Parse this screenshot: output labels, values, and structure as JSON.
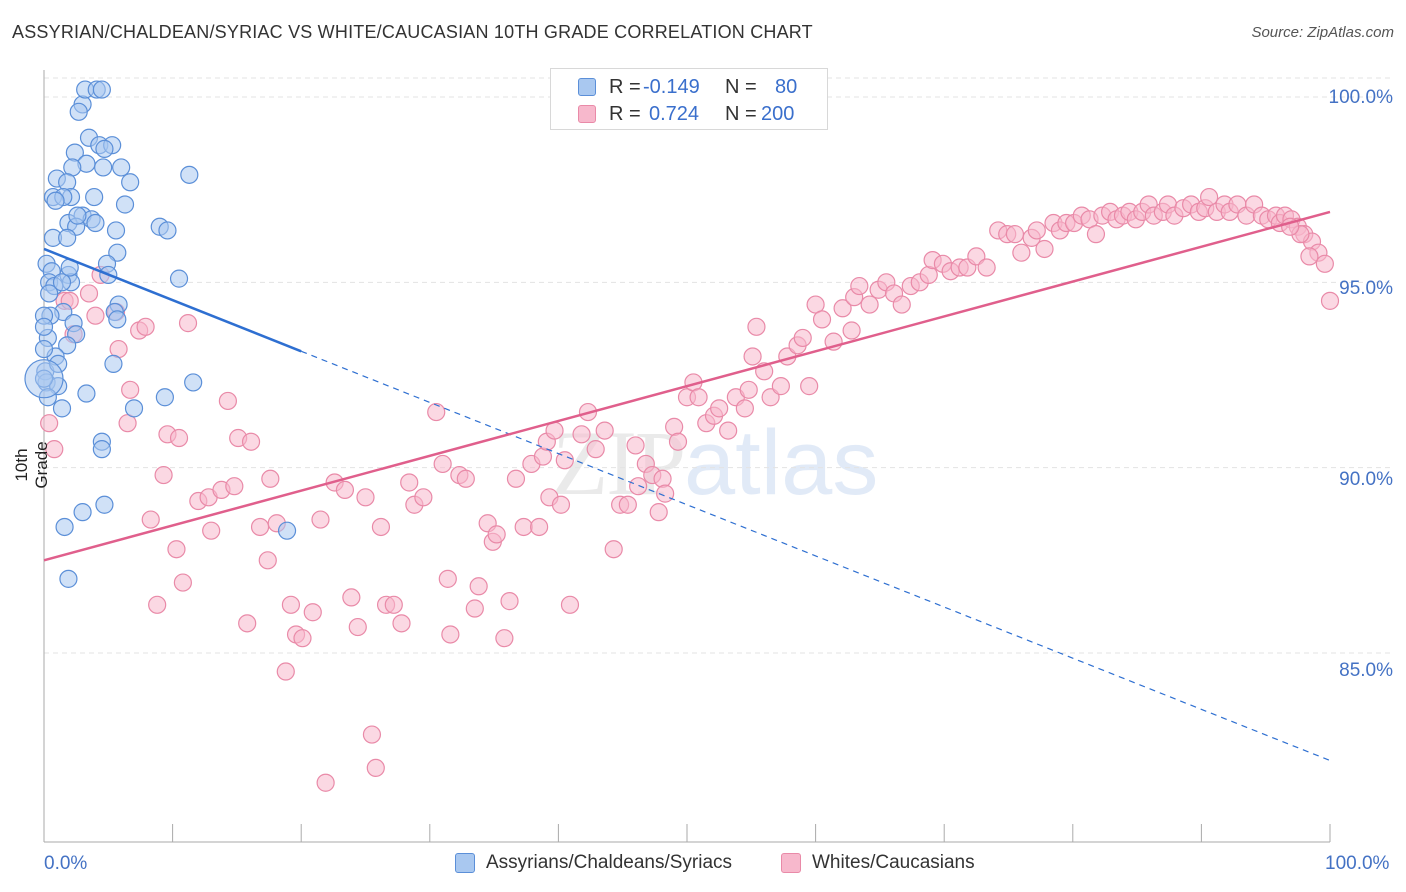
{
  "title": "ASSYRIAN/CHALDEAN/SYRIAC VS WHITE/CAUCASIAN 10TH GRADE CORRELATION CHART",
  "source": "Source: ZipAtlas.com",
  "watermark": {
    "zip": "ZIP",
    "atlas": "atlas"
  },
  "legend_top": {
    "rows": [
      {
        "r_label": "R =",
        "r_value": "-0.149",
        "n_label": "N =",
        "n_value": "80"
      },
      {
        "r_label": "R =",
        "r_value": "0.724",
        "n_label": "N =",
        "n_value": "200"
      }
    ]
  },
  "y_axis_title": "10th Grade",
  "x_tick_labels": [
    "0.0%",
    "100.0%"
  ],
  "y_tick_labels": [
    "100.0%",
    "95.0%",
    "90.0%",
    "85.0%"
  ],
  "legend_bottom": [
    "Assyrians/Chaldeans/Syriacs",
    "Whites/Caucasians"
  ],
  "colors": {
    "blue_fill": "#a9c8f0",
    "blue_stroke": "#5b8fd8",
    "blue_line": "#2e6fd1",
    "pink_fill": "#f7b8cc",
    "pink_stroke": "#e98aa8",
    "pink_line": "#e05f8c",
    "grid": "#e3e3e3",
    "tick_text": "#4472c4"
  },
  "chart_data": {
    "type": "scatter",
    "x_range": [
      0,
      100
    ],
    "y_range": [
      80.5,
      101.2
    ],
    "y_ticks": [
      100,
      95,
      90,
      85
    ],
    "grid": true,
    "legend_placement": "bottom",
    "series": [
      {
        "name": "Assyrians/Chaldeans/Syriacs",
        "color": "#5b8fd8",
        "trend": {
          "x0": 0,
          "y0": 95.9,
          "x1": 100,
          "y1": 82.1,
          "solid_until_x": 20
        },
        "points": [
          [
            3.0,
            99.8
          ],
          [
            3.2,
            100.2
          ],
          [
            4.1,
            100.2
          ],
          [
            4.5,
            100.2
          ],
          [
            2.7,
            99.6
          ],
          [
            3.5,
            98.9
          ],
          [
            4.3,
            98.7
          ],
          [
            5.3,
            98.7
          ],
          [
            4.7,
            98.6
          ],
          [
            2.4,
            98.5
          ],
          [
            3.3,
            98.2
          ],
          [
            2.2,
            98.1
          ],
          [
            6.0,
            98.1
          ],
          [
            1.0,
            97.8
          ],
          [
            1.8,
            97.7
          ],
          [
            6.7,
            97.7
          ],
          [
            11.3,
            97.9
          ],
          [
            2.1,
            97.3
          ],
          [
            0.7,
            97.3
          ],
          [
            1.5,
            97.3
          ],
          [
            6.3,
            97.1
          ],
          [
            0.9,
            97.2
          ],
          [
            3.0,
            96.8
          ],
          [
            3.7,
            96.7
          ],
          [
            1.9,
            96.6
          ],
          [
            2.5,
            96.5
          ],
          [
            4.0,
            96.6
          ],
          [
            9.0,
            96.5
          ],
          [
            9.6,
            96.4
          ],
          [
            5.6,
            96.4
          ],
          [
            0.7,
            96.2
          ],
          [
            1.8,
            96.2
          ],
          [
            5.7,
            95.8
          ],
          [
            0.2,
            95.5
          ],
          [
            4.9,
            95.5
          ],
          [
            5.0,
            95.2
          ],
          [
            1.9,
            95.2
          ],
          [
            0.6,
            95.3
          ],
          [
            10.5,
            95.1
          ],
          [
            2.1,
            95.0
          ],
          [
            0.4,
            95.0
          ],
          [
            0.8,
            94.9
          ],
          [
            1.4,
            95.0
          ],
          [
            5.8,
            94.4
          ],
          [
            5.5,
            94.2
          ],
          [
            1.5,
            94.2
          ],
          [
            0.5,
            94.1
          ],
          [
            5.7,
            94.0
          ],
          [
            2.3,
            93.9
          ],
          [
            0.3,
            93.5
          ],
          [
            2.5,
            93.6
          ],
          [
            1.8,
            93.3
          ],
          [
            0.9,
            93.0
          ],
          [
            5.4,
            92.8
          ],
          [
            0.1,
            92.6
          ],
          [
            0.2,
            92.3
          ],
          [
            1.1,
            92.2
          ],
          [
            11.6,
            92.3
          ],
          [
            3.3,
            92.0
          ],
          [
            9.4,
            91.9
          ],
          [
            7.0,
            91.6
          ],
          [
            1.4,
            91.6
          ],
          [
            4.5,
            90.7
          ],
          [
            4.5,
            90.5
          ],
          [
            4.7,
            89.0
          ],
          [
            3.0,
            88.8
          ],
          [
            1.6,
            88.4
          ],
          [
            18.9,
            88.3
          ],
          [
            1.9,
            87.0
          ],
          [
            0.0,
            94.1
          ],
          [
            0.0,
            93.8
          ],
          [
            1.1,
            92.8
          ],
          [
            0.0,
            93.2
          ],
          [
            0.0,
            92.4
          ],
          [
            0.3,
            91.9
          ],
          [
            0.4,
            94.7
          ],
          [
            2.0,
            95.4
          ],
          [
            2.6,
            96.8
          ],
          [
            3.9,
            97.3
          ],
          [
            4.6,
            98.1
          ]
        ]
      },
      {
        "name": "Whites/Caucasians",
        "color": "#e98aa8",
        "trend": {
          "x0": 0,
          "y0": 87.5,
          "x1": 100,
          "y1": 96.9
        },
        "points": [
          [
            0.4,
            91.2
          ],
          [
            0.8,
            90.5
          ],
          [
            1.6,
            94.5
          ],
          [
            2.0,
            94.5
          ],
          [
            2.3,
            93.6
          ],
          [
            3.5,
            94.7
          ],
          [
            4.0,
            94.1
          ],
          [
            4.4,
            95.2
          ],
          [
            5.6,
            94.2
          ],
          [
            5.8,
            93.2
          ],
          [
            6.5,
            91.2
          ],
          [
            6.7,
            92.1
          ],
          [
            7.4,
            93.7
          ],
          [
            7.9,
            93.8
          ],
          [
            8.3,
            88.6
          ],
          [
            8.8,
            86.3
          ],
          [
            9.3,
            89.8
          ],
          [
            9.6,
            90.9
          ],
          [
            10.3,
            87.8
          ],
          [
            10.5,
            90.8
          ],
          [
            10.8,
            86.9
          ],
          [
            11.2,
            93.9
          ],
          [
            12.0,
            89.1
          ],
          [
            12.8,
            89.2
          ],
          [
            13.0,
            88.3
          ],
          [
            13.8,
            89.4
          ],
          [
            14.3,
            91.8
          ],
          [
            14.8,
            89.5
          ],
          [
            15.1,
            90.8
          ],
          [
            15.8,
            85.8
          ],
          [
            16.1,
            90.7
          ],
          [
            16.8,
            88.4
          ],
          [
            17.4,
            87.5
          ],
          [
            17.6,
            89.7
          ],
          [
            18.1,
            88.5
          ],
          [
            18.8,
            84.5
          ],
          [
            19.2,
            86.3
          ],
          [
            19.6,
            85.5
          ],
          [
            20.1,
            85.4
          ],
          [
            20.9,
            86.1
          ],
          [
            21.5,
            88.6
          ],
          [
            21.9,
            81.5
          ],
          [
            22.6,
            89.6
          ],
          [
            23.4,
            89.4
          ],
          [
            23.9,
            86.5
          ],
          [
            24.4,
            85.7
          ],
          [
            25.0,
            89.2
          ],
          [
            25.5,
            82.8
          ],
          [
            25.8,
            81.9
          ],
          [
            26.2,
            88.4
          ],
          [
            26.6,
            86.3
          ],
          [
            27.2,
            86.3
          ],
          [
            27.8,
            85.8
          ],
          [
            28.4,
            89.6
          ],
          [
            28.8,
            89.0
          ],
          [
            29.5,
            89.2
          ],
          [
            30.5,
            91.5
          ],
          [
            31.0,
            90.1
          ],
          [
            31.4,
            87.0
          ],
          [
            31.6,
            85.5
          ],
          [
            32.3,
            89.8
          ],
          [
            32.8,
            89.7
          ],
          [
            33.5,
            86.2
          ],
          [
            33.8,
            86.8
          ],
          [
            34.5,
            88.5
          ],
          [
            34.9,
            88.0
          ],
          [
            35.2,
            88.2
          ],
          [
            35.8,
            85.4
          ],
          [
            36.2,
            86.4
          ],
          [
            36.7,
            89.7
          ],
          [
            37.3,
            88.4
          ],
          [
            37.9,
            90.1
          ],
          [
            38.5,
            88.4
          ],
          [
            38.8,
            90.3
          ],
          [
            39.1,
            90.7
          ],
          [
            39.3,
            89.2
          ],
          [
            39.7,
            91.0
          ],
          [
            40.2,
            89.0
          ],
          [
            40.5,
            90.2
          ],
          [
            40.9,
            86.3
          ],
          [
            41.8,
            90.9
          ],
          [
            42.3,
            91.5
          ],
          [
            42.9,
            90.5
          ],
          [
            43.6,
            91.0
          ],
          [
            44.3,
            87.8
          ],
          [
            44.8,
            89.0
          ],
          [
            45.4,
            89.0
          ],
          [
            46.0,
            90.6
          ],
          [
            46.2,
            89.5
          ],
          [
            46.8,
            90.1
          ],
          [
            47.3,
            89.8
          ],
          [
            47.8,
            88.8
          ],
          [
            48.1,
            89.7
          ],
          [
            48.3,
            89.3
          ],
          [
            49.0,
            91.1
          ],
          [
            49.3,
            90.7
          ],
          [
            50.0,
            91.9
          ],
          [
            50.5,
            92.3
          ],
          [
            50.9,
            91.9
          ],
          [
            51.5,
            91.2
          ],
          [
            52.1,
            91.4
          ],
          [
            52.5,
            91.6
          ],
          [
            53.2,
            91.0
          ],
          [
            53.8,
            91.9
          ],
          [
            54.5,
            91.6
          ],
          [
            54.8,
            92.1
          ],
          [
            55.1,
            93.0
          ],
          [
            55.4,
            93.8
          ],
          [
            56.0,
            92.6
          ],
          [
            56.5,
            91.9
          ],
          [
            57.3,
            92.2
          ],
          [
            57.8,
            93.0
          ],
          [
            58.6,
            93.3
          ],
          [
            59.0,
            93.5
          ],
          [
            59.5,
            92.2
          ],
          [
            60.0,
            94.4
          ],
          [
            60.5,
            94.0
          ],
          [
            61.4,
            93.4
          ],
          [
            62.1,
            94.3
          ],
          [
            62.8,
            93.7
          ],
          [
            63.0,
            94.6
          ],
          [
            63.4,
            94.9
          ],
          [
            64.2,
            94.4
          ],
          [
            64.9,
            94.8
          ],
          [
            65.5,
            95.0
          ],
          [
            66.1,
            94.7
          ],
          [
            66.7,
            94.4
          ],
          [
            67.4,
            94.9
          ],
          [
            68.1,
            95.0
          ],
          [
            68.8,
            95.2
          ],
          [
            69.1,
            95.6
          ],
          [
            69.9,
            95.5
          ],
          [
            70.5,
            95.3
          ],
          [
            71.2,
            95.4
          ],
          [
            71.8,
            95.4
          ],
          [
            72.5,
            95.7
          ],
          [
            73.3,
            95.4
          ],
          [
            74.2,
            96.4
          ],
          [
            74.9,
            96.3
          ],
          [
            75.5,
            96.3
          ],
          [
            76.0,
            95.8
          ],
          [
            76.8,
            96.2
          ],
          [
            77.2,
            96.4
          ],
          [
            77.8,
            95.9
          ],
          [
            78.5,
            96.6
          ],
          [
            79.0,
            96.4
          ],
          [
            79.5,
            96.6
          ],
          [
            80.1,
            96.6
          ],
          [
            80.7,
            96.8
          ],
          [
            81.3,
            96.7
          ],
          [
            81.8,
            96.3
          ],
          [
            82.3,
            96.8
          ],
          [
            82.9,
            96.9
          ],
          [
            83.4,
            96.7
          ],
          [
            83.9,
            96.8
          ],
          [
            84.4,
            96.9
          ],
          [
            84.9,
            96.7
          ],
          [
            85.4,
            96.9
          ],
          [
            85.9,
            97.1
          ],
          [
            86.3,
            96.8
          ],
          [
            87.0,
            96.9
          ],
          [
            87.4,
            97.1
          ],
          [
            87.9,
            96.8
          ],
          [
            88.6,
            97.0
          ],
          [
            89.2,
            97.1
          ],
          [
            89.8,
            96.9
          ],
          [
            90.3,
            97.0
          ],
          [
            90.6,
            97.3
          ],
          [
            91.2,
            96.9
          ],
          [
            91.8,
            97.1
          ],
          [
            92.2,
            96.9
          ],
          [
            92.8,
            97.1
          ],
          [
            93.5,
            96.8
          ],
          [
            94.1,
            97.1
          ],
          [
            94.7,
            96.8
          ],
          [
            95.2,
            96.7
          ],
          [
            95.8,
            96.8
          ],
          [
            96.1,
            96.6
          ],
          [
            96.5,
            96.8
          ],
          [
            97.0,
            96.7
          ],
          [
            97.5,
            96.5
          ],
          [
            98.0,
            96.3
          ],
          [
            98.6,
            96.1
          ],
          [
            99.1,
            95.8
          ],
          [
            99.6,
            95.5
          ],
          [
            100.0,
            94.5
          ],
          [
            98.4,
            95.7
          ],
          [
            97.7,
            96.3
          ],
          [
            96.9,
            96.5
          ]
        ]
      }
    ]
  }
}
